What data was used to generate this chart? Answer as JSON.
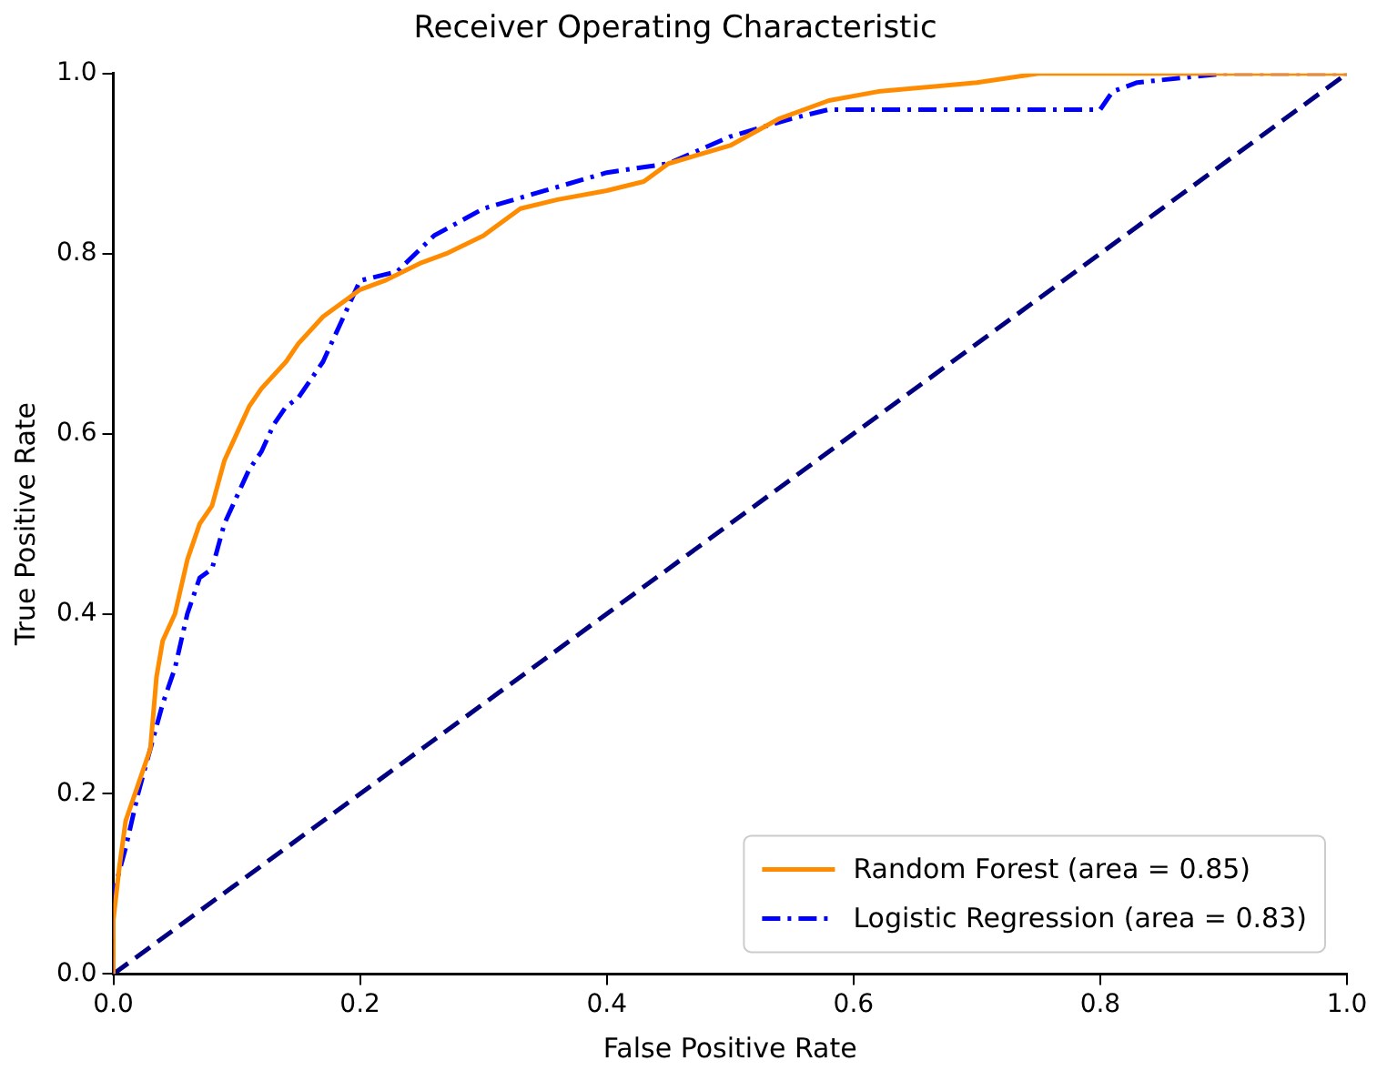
{
  "chart_data": {
    "type": "line",
    "title": "Receiver Operating Characteristic",
    "xlabel": "False Positive Rate",
    "ylabel": "True Positive Rate",
    "xlim": [
      0,
      1
    ],
    "ylim": [
      0,
      1
    ],
    "xticks": [
      {
        "value": 0,
        "label": "0.0"
      },
      {
        "value": 0.2,
        "label": "0.2"
      },
      {
        "value": 0.4,
        "label": "0.4"
      },
      {
        "value": 0.6,
        "label": "0.6"
      },
      {
        "value": 0.8,
        "label": "0.8"
      },
      {
        "value": 1,
        "label": "1.0"
      }
    ],
    "yticks": [
      {
        "value": 0,
        "label": "0.0"
      },
      {
        "value": 0.2,
        "label": "0.2"
      },
      {
        "value": 0.4,
        "label": "0.4"
      },
      {
        "value": 0.6,
        "label": "0.6"
      },
      {
        "value": 0.8,
        "label": "0.8"
      },
      {
        "value": 1,
        "label": "1.0"
      }
    ],
    "grid": false,
    "legend": "bottom right",
    "marker": "none",
    "series": [
      {
        "name": "Random Forest (area = 0.85)",
        "color": "#ff8c00",
        "line_style": "solid",
        "x": [
          0,
          0,
          0.005,
          0.01,
          0.02,
          0.03,
          0.035,
          0.04,
          0.05,
          0.06,
          0.07,
          0.08,
          0.09,
          0.1,
          0.11,
          0.12,
          0.14,
          0.15,
          0.17,
          0.19,
          0.2,
          0.22,
          0.25,
          0.27,
          0.3,
          0.33,
          0.36,
          0.4,
          0.43,
          0.45,
          0.5,
          0.54,
          0.58,
          0.62,
          0.7,
          0.75,
          1
        ],
        "values": [
          0,
          0.06,
          0.12,
          0.17,
          0.21,
          0.25,
          0.33,
          0.37,
          0.4,
          0.46,
          0.5,
          0.52,
          0.57,
          0.6,
          0.63,
          0.65,
          0.68,
          0.7,
          0.73,
          0.75,
          0.76,
          0.77,
          0.79,
          0.8,
          0.82,
          0.85,
          0.86,
          0.87,
          0.88,
          0.9,
          0.92,
          0.95,
          0.97,
          0.98,
          0.99,
          1,
          1
        ]
      },
      {
        "name": "Logistic Regression (area = 0.83)",
        "color": "#0000ff",
        "line_style": "dashdot",
        "x": [
          0,
          0,
          0.01,
          0.02,
          0.03,
          0.04,
          0.05,
          0.06,
          0.07,
          0.08,
          0.09,
          0.1,
          0.11,
          0.12,
          0.13,
          0.14,
          0.15,
          0.17,
          0.18,
          0.19,
          0.2,
          0.23,
          0.26,
          0.3,
          0.35,
          0.4,
          0.45,
          0.5,
          0.55,
          0.58,
          0.62,
          0.8,
          0.81,
          0.83,
          0.9,
          1
        ],
        "values": [
          0,
          0.09,
          0.14,
          0.2,
          0.25,
          0.3,
          0.34,
          0.4,
          0.44,
          0.45,
          0.5,
          0.53,
          0.56,
          0.58,
          0.61,
          0.63,
          0.64,
          0.68,
          0.71,
          0.74,
          0.77,
          0.78,
          0.82,
          0.85,
          0.87,
          0.89,
          0.9,
          0.93,
          0.95,
          0.96,
          0.96,
          0.96,
          0.98,
          0.99,
          1,
          1
        ]
      },
      {
        "color": "#000080",
        "line_style": "dashed",
        "x": [
          0,
          1
        ],
        "values": [
          0,
          1
        ]
      }
    ]
  }
}
